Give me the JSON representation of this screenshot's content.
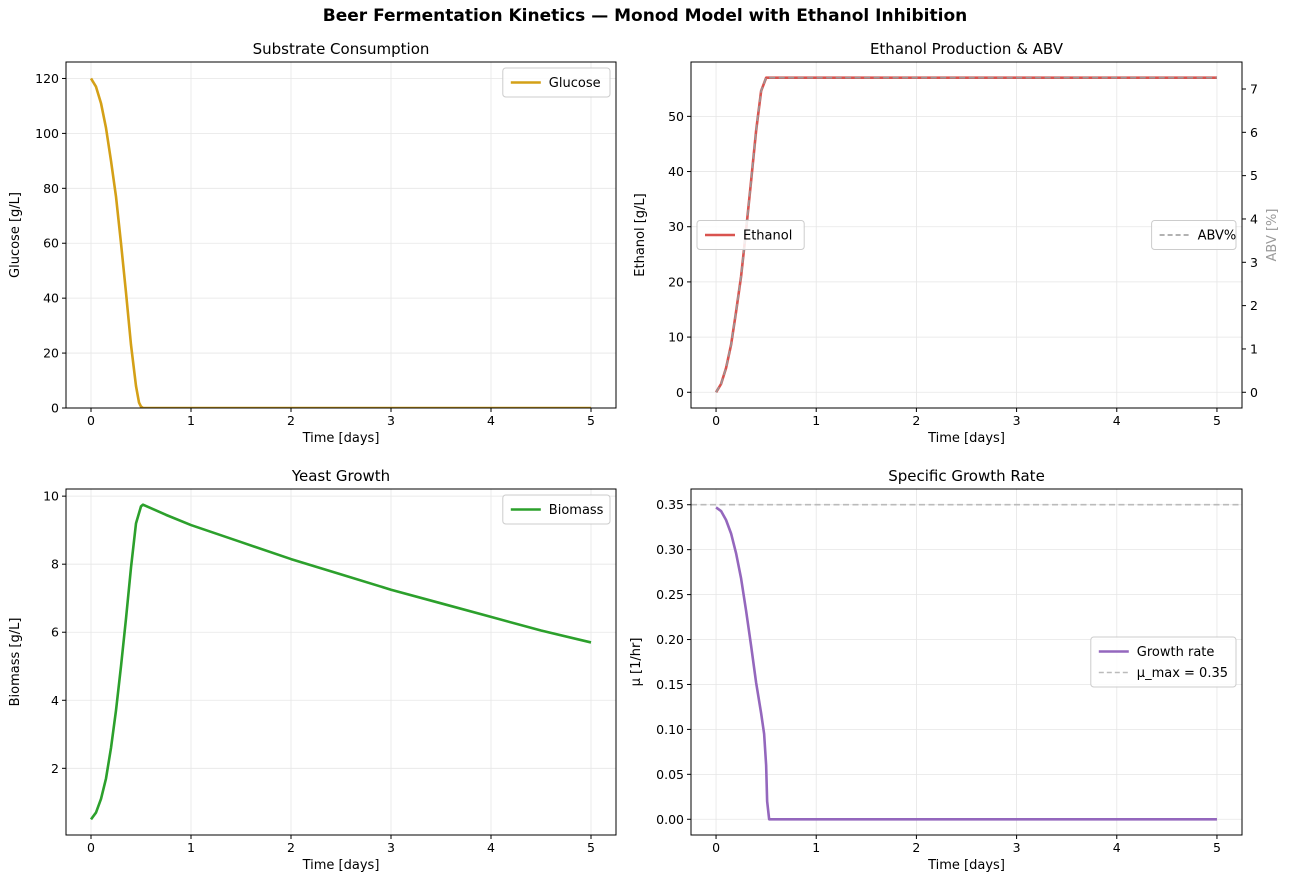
{
  "figure": {
    "title": "Beer Fermentation Kinetics — Monod Model with Ethanol Inhibition"
  },
  "chart_data": [
    {
      "type": "line",
      "title": "Substrate Consumption",
      "xlabel": "Time [days]",
      "ylabel": "Glucose [g/L]",
      "xlim": [
        -0.25,
        5.25
      ],
      "ylim": [
        0,
        126
      ],
      "xticks": [
        0,
        1,
        2,
        3,
        4,
        5
      ],
      "yticks": [
        0,
        20,
        40,
        60,
        80,
        100,
        120
      ],
      "grid": true,
      "legend": "top-right",
      "series": [
        {
          "name": "Glucose",
          "color": "#d4a017",
          "x": [
            0,
            0.05,
            0.1,
            0.15,
            0.2,
            0.25,
            0.3,
            0.35,
            0.4,
            0.45,
            0.48,
            0.5,
            0.52,
            1,
            2,
            3,
            4,
            5
          ],
          "y": [
            120,
            117,
            111,
            102,
            90,
            77,
            60,
            42,
            23,
            8,
            2,
            0.5,
            0,
            0,
            0,
            0,
            0,
            0
          ]
        }
      ]
    },
    {
      "type": "line",
      "title": "Ethanol Production & ABV",
      "xlabel": "Time [days]",
      "ylabel": "Ethanol [g/L]",
      "ylabel_right": "ABV [%]",
      "xlim": [
        -0.25,
        5.25
      ],
      "ylim": [
        -2.85,
        59.85
      ],
      "ylim_right": [
        -0.363,
        7.623
      ],
      "xticks": [
        0,
        1,
        2,
        3,
        4,
        5
      ],
      "yticks": [
        0,
        10,
        20,
        30,
        40,
        50
      ],
      "yticks_right": [
        0,
        1,
        2,
        3,
        4,
        5,
        6,
        7
      ],
      "grid": true,
      "legend": "center-left",
      "legend_right": "center-right",
      "series": [
        {
          "name": "Ethanol",
          "color": "#d9534f",
          "x": [
            0,
            0.05,
            0.1,
            0.15,
            0.2,
            0.25,
            0.3,
            0.35,
            0.4,
            0.45,
            0.5,
            0.52,
            1,
            2,
            3,
            4,
            5
          ],
          "y": [
            0,
            1.5,
            4.4,
            8.6,
            14.6,
            21.0,
            29.4,
            38.3,
            47.4,
            54.6,
            57.0,
            57.0,
            57.0,
            57.0,
            57.0,
            57.0,
            57.0
          ]
        }
      ],
      "series_right": [
        {
          "name": "ABV%",
          "color": "#999999",
          "dash": "dashed",
          "x": [
            0,
            0.05,
            0.1,
            0.15,
            0.2,
            0.25,
            0.3,
            0.35,
            0.4,
            0.45,
            0.5,
            0.52,
            1,
            2,
            3,
            4,
            5
          ],
          "y": [
            0,
            0.19,
            0.56,
            1.1,
            1.86,
            2.68,
            3.74,
            4.88,
            6.04,
            6.96,
            7.26,
            7.26,
            7.26,
            7.26,
            7.26,
            7.26,
            7.26
          ]
        }
      ]
    },
    {
      "type": "line",
      "title": "Yeast Growth",
      "xlabel": "Time [days]",
      "ylabel": "Biomass [g/L]",
      "xlim": [
        -0.25,
        5.25
      ],
      "ylim": [
        0.04,
        10.21
      ],
      "xticks": [
        0,
        1,
        2,
        3,
        4,
        5
      ],
      "yticks": [
        2,
        4,
        6,
        8,
        10
      ],
      "grid": true,
      "legend": "top-right",
      "series": [
        {
          "name": "Biomass",
          "color": "#2ca02c",
          "x": [
            0,
            0.05,
            0.1,
            0.15,
            0.2,
            0.25,
            0.3,
            0.35,
            0.4,
            0.45,
            0.5,
            0.52,
            0.75,
            1,
            1.5,
            2,
            2.5,
            3,
            3.5,
            4,
            4.5,
            5
          ],
          "y": [
            0.5,
            0.7,
            1.1,
            1.7,
            2.6,
            3.7,
            5.0,
            6.4,
            7.9,
            9.2,
            9.7,
            9.75,
            9.45,
            9.15,
            8.65,
            8.15,
            7.7,
            7.25,
            6.85,
            6.45,
            6.05,
            5.7
          ]
        }
      ]
    },
    {
      "type": "line",
      "title": "Specific Growth Rate",
      "xlabel": "Time [days]",
      "ylabel": "μ [1/hr]",
      "xlim": [
        -0.25,
        5.25
      ],
      "ylim": [
        -0.0175,
        0.3675
      ],
      "xticks": [
        0,
        1,
        2,
        3,
        4,
        5
      ],
      "yticks": [
        0.0,
        0.05,
        0.1,
        0.15,
        0.2,
        0.25,
        0.3,
        0.35
      ],
      "grid": true,
      "legend": "center-right",
      "series": [
        {
          "name": "Growth rate",
          "color": "#9467bd",
          "x": [
            0,
            0.05,
            0.1,
            0.15,
            0.2,
            0.25,
            0.3,
            0.35,
            0.4,
            0.45,
            0.48,
            0.5,
            0.51,
            0.53,
            1,
            2,
            3,
            4,
            5
          ],
          "y": [
            0.347,
            0.343,
            0.333,
            0.318,
            0.296,
            0.268,
            0.232,
            0.193,
            0.152,
            0.118,
            0.095,
            0.06,
            0.02,
            0,
            0,
            0,
            0,
            0,
            0
          ]
        },
        {
          "name": "μ_max = 0.35",
          "color": "#bbbbbb",
          "dash": "dashed",
          "x": [
            -0.25,
            5.25
          ],
          "y": [
            0.35,
            0.35
          ]
        }
      ]
    }
  ]
}
